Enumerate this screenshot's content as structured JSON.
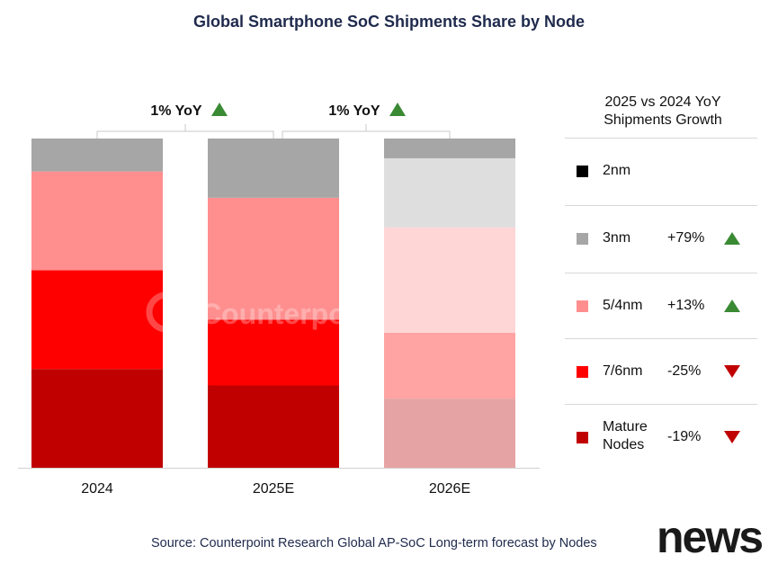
{
  "title": "Global Smartphone SoC Shipments Share by Node",
  "source": "Source: Counterpoint Research Global AP-SoC Long-term forecast by Nodes",
  "watermark": "Counterpoint",
  "brand_logo": "news",
  "yoy_annotations": [
    {
      "text": "1% YoY",
      "direction": "up"
    },
    {
      "text": "1% YoY",
      "direction": "up"
    }
  ],
  "legend": {
    "header_line1": "2025 vs 2024 YoY",
    "header_line2": "Shipments Growth",
    "items": [
      {
        "label": "2nm",
        "label2": "",
        "growth": "",
        "direction": "none",
        "color": "#000000"
      },
      {
        "label": "3nm",
        "label2": "",
        "growth": "+79%",
        "direction": "up",
        "color": "#a6a6a6"
      },
      {
        "label": "5/4nm",
        "label2": "",
        "growth": "+13%",
        "direction": "up",
        "color": "#ff8f8f"
      },
      {
        "label": "7/6nm",
        "label2": "",
        "growth": "-25%",
        "direction": "down",
        "color": "#ff0000"
      },
      {
        "label": "Mature",
        "label2": "Nodes",
        "growth": "-19%",
        "direction": "down",
        "color": "#c00000"
      }
    ]
  },
  "chart_data": {
    "type": "bar",
    "stacked": true,
    "normalized_100": true,
    "categories": [
      "2024",
      "2025E",
      "2026E"
    ],
    "series": [
      {
        "name": "Mature Nodes",
        "colors": [
          "#c00000",
          "#c00000",
          "#e6a3a3"
        ],
        "values": [
          30,
          25,
          21
        ]
      },
      {
        "name": "7/6nm",
        "colors": [
          "#ff0000",
          "#ff0000",
          "#ffa3a3"
        ],
        "values": [
          30,
          20,
          20
        ]
      },
      {
        "name": "5/4nm",
        "colors": [
          "#ff8f8f",
          "#ff8f8f",
          "#ffd6d6"
        ],
        "values": [
          30,
          37,
          32
        ]
      },
      {
        "name": "3nm",
        "colors": [
          "#a6a6a6",
          "#a6a6a6",
          "#dedede"
        ],
        "values": [
          10,
          18,
          21
        ]
      },
      {
        "name": "2nm",
        "colors": [
          "#000000",
          "#000000",
          "#a6a6a6"
        ],
        "values": [
          0,
          0,
          6
        ]
      }
    ],
    "ylim": [
      0,
      100
    ]
  }
}
